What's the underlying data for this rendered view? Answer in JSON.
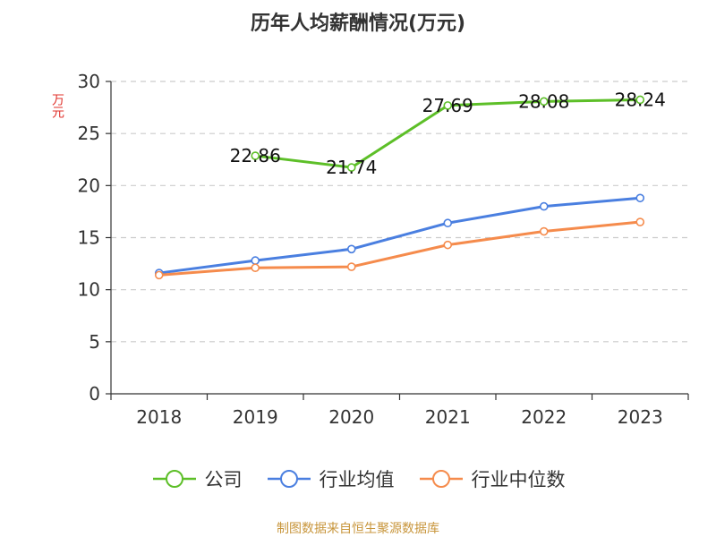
{
  "chart_data": {
    "type": "line",
    "title": "历年人均薪酬情况(万元)",
    "ylabel": "万元",
    "categories": [
      "2018",
      "2019",
      "2020",
      "2021",
      "2022",
      "2023"
    ],
    "ylim": [
      0,
      30
    ],
    "yticks": [
      0,
      5,
      10,
      15,
      20,
      25,
      30
    ],
    "grid": true,
    "legend_position": "bottom",
    "series": [
      {
        "name": "公司",
        "color": "#5dbf28",
        "values": [
          null,
          22.86,
          21.74,
          27.69,
          28.08,
          28.24
        ],
        "labels": [
          "",
          "22.86",
          "21.74",
          "27.69",
          "28.08",
          "28.24"
        ]
      },
      {
        "name": "行业均值",
        "color": "#4a7fe0",
        "values": [
          11.6,
          12.8,
          13.9,
          16.4,
          18.0,
          18.8
        ]
      },
      {
        "name": "行业中位数",
        "color": "#f58b4c",
        "values": [
          11.4,
          12.1,
          12.2,
          14.3,
          15.6,
          16.5
        ]
      }
    ]
  },
  "source": "制图数据来自恒生聚源数据库"
}
